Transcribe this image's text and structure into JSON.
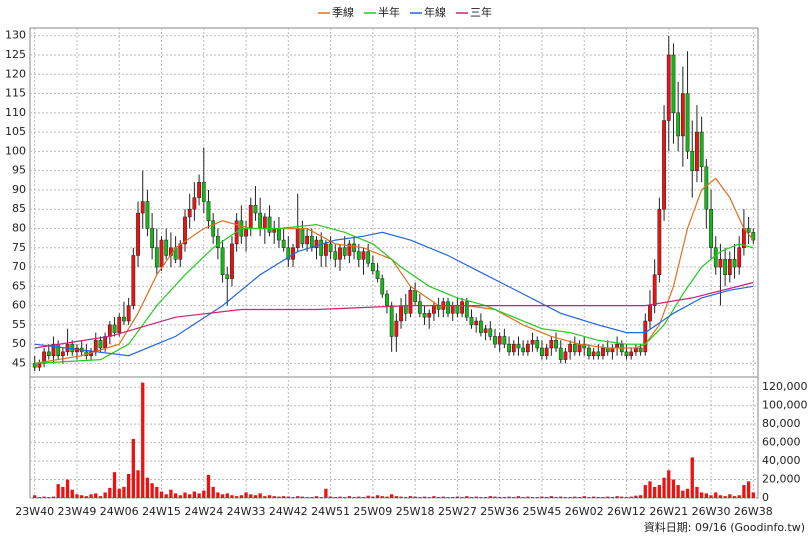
{
  "chart_data": {
    "type": "candlestick",
    "up_color": "#ee1111",
    "down_color": "#11bb11",
    "volume_color": "#ee1111",
    "grid": true,
    "footnote": "資料日期: 09/16  (Goodinfo.tw)",
    "ylim": [
      42,
      132
    ],
    "yticks": [
      45,
      50,
      55,
      60,
      65,
      70,
      75,
      80,
      85,
      90,
      95,
      100,
      105,
      110,
      115,
      120,
      125,
      130
    ],
    "y2lim": [
      0,
      130000
    ],
    "y2ticks": [
      0,
      {
        "value": 20000,
        "label": "20,000"
      },
      {
        "value": 40000,
        "label": "40,000"
      },
      {
        "value": 60000,
        "label": "60,000"
      },
      {
        "value": 80000,
        "label": "80,000"
      },
      {
        "value": 100000,
        "label": "100,000"
      },
      {
        "value": 120000,
        "label": "120,000"
      }
    ],
    "xlim": [
      -1,
      154
    ],
    "xticks": [
      {
        "value": 0,
        "label": "23W40"
      },
      {
        "value": 9,
        "label": "23W49"
      },
      {
        "value": 18,
        "label": "24W06"
      },
      {
        "value": 27,
        "label": "24W15"
      },
      {
        "value": 36,
        "label": "24W24"
      },
      {
        "value": 45,
        "label": "24W33"
      },
      {
        "value": 54,
        "label": "24W42"
      },
      {
        "value": 63,
        "label": "24W51"
      },
      {
        "value": 72,
        "label": "25W09"
      },
      {
        "value": 81,
        "label": "25W18"
      },
      {
        "value": 90,
        "label": "25W27"
      },
      {
        "value": 99,
        "label": "25W36"
      },
      {
        "value": 108,
        "label": "25W45"
      },
      {
        "value": 117,
        "label": "26W02"
      },
      {
        "value": 126,
        "label": "26W12"
      },
      {
        "value": 135,
        "label": "26W21"
      },
      {
        "value": 144,
        "label": "26W30"
      },
      {
        "value": 153,
        "label": "26W38"
      }
    ],
    "ohlc": [
      [
        45,
        47,
        43,
        44
      ],
      [
        44,
        46,
        43,
        45
      ],
      [
        45,
        49,
        44,
        48
      ],
      [
        48,
        50,
        46,
        47
      ],
      [
        47,
        52,
        45,
        50
      ],
      [
        50,
        51,
        46,
        47
      ],
      [
        47,
        49,
        45,
        48
      ],
      [
        48,
        54,
        47,
        50
      ],
      [
        50,
        51,
        47,
        48
      ],
      [
        48,
        50,
        46,
        49
      ],
      [
        49,
        51,
        47,
        48
      ],
      [
        48,
        50,
        46,
        47
      ],
      [
        47,
        49,
        46,
        48
      ],
      [
        48,
        53,
        47,
        51
      ],
      [
        51,
        52,
        48,
        49
      ],
      [
        49,
        53,
        48,
        52
      ],
      [
        52,
        56,
        50,
        55
      ],
      [
        55,
        57,
        52,
        53
      ],
      [
        53,
        58,
        52,
        57
      ],
      [
        57,
        61,
        55,
        56
      ],
      [
        56,
        62,
        55,
        60
      ],
      [
        60,
        75,
        59,
        73
      ],
      [
        73,
        87,
        70,
        84
      ],
      [
        84,
        95,
        80,
        87
      ],
      [
        87,
        90,
        78,
        80
      ],
      [
        80,
        84,
        72,
        75
      ],
      [
        75,
        80,
        68,
        70
      ],
      [
        70,
        78,
        69,
        77
      ],
      [
        77,
        80,
        72,
        73
      ],
      [
        73,
        79,
        70,
        75
      ],
      [
        75,
        78,
        71,
        72
      ],
      [
        72,
        77,
        70,
        76
      ],
      [
        76,
        85,
        74,
        83
      ],
      [
        83,
        89,
        80,
        85
      ],
      [
        85,
        92,
        82,
        88
      ],
      [
        88,
        94,
        86,
        92
      ],
      [
        92,
        101,
        84,
        87
      ],
      [
        87,
        90,
        80,
        82
      ],
      [
        82,
        84,
        76,
        78
      ],
      [
        78,
        80,
        72,
        75
      ],
      [
        75,
        77,
        66,
        68
      ],
      [
        68,
        70,
        60,
        67
      ],
      [
        67,
        78,
        65,
        76
      ],
      [
        76,
        84,
        74,
        82
      ],
      [
        82,
        86,
        76,
        78
      ],
      [
        78,
        82,
        74,
        80
      ],
      [
        80,
        88,
        78,
        86
      ],
      [
        86,
        91,
        82,
        84
      ],
      [
        84,
        88,
        78,
        80
      ],
      [
        80,
        84,
        76,
        83
      ],
      [
        83,
        86,
        78,
        79
      ],
      [
        79,
        82,
        76,
        80
      ],
      [
        80,
        83,
        75,
        77
      ],
      [
        77,
        80,
        74,
        75
      ],
      [
        75,
        78,
        70,
        72
      ],
      [
        72,
        76,
        70,
        75
      ],
      [
        75,
        89,
        74,
        80
      ],
      [
        80,
        82,
        75,
        76
      ],
      [
        76,
        80,
        74,
        78
      ],
      [
        78,
        80,
        74,
        75
      ],
      [
        75,
        78,
        72,
        77
      ],
      [
        77,
        79,
        70,
        73
      ],
      [
        73,
        77,
        70,
        76
      ],
      [
        76,
        78,
        72,
        74
      ],
      [
        74,
        76,
        70,
        72
      ],
      [
        72,
        76,
        69,
        75
      ],
      [
        75,
        78,
        72,
        73
      ],
      [
        73,
        77,
        71,
        76
      ],
      [
        76,
        78,
        72,
        74
      ],
      [
        74,
        76,
        70,
        72
      ],
      [
        72,
        75,
        68,
        74
      ],
      [
        74,
        76,
        70,
        71
      ],
      [
        71,
        73,
        68,
        69
      ],
      [
        69,
        71,
        66,
        67
      ],
      [
        67,
        68,
        62,
        63
      ],
      [
        63,
        64,
        58,
        60
      ],
      [
        60,
        61,
        48,
        52
      ],
      [
        52,
        58,
        48,
        56
      ],
      [
        56,
        62,
        54,
        60
      ],
      [
        60,
        63,
        56,
        58
      ],
      [
        58,
        65,
        57,
        64
      ],
      [
        64,
        66,
        60,
        61
      ],
      [
        61,
        63,
        57,
        58
      ],
      [
        58,
        60,
        55,
        57
      ],
      [
        57,
        59,
        54,
        58
      ],
      [
        58,
        61,
        56,
        60
      ],
      [
        60,
        62,
        57,
        59
      ],
      [
        59,
        62,
        57,
        61
      ],
      [
        61,
        62,
        57,
        58
      ],
      [
        58,
        61,
        56,
        60
      ],
      [
        60,
        62,
        57,
        58
      ],
      [
        58,
        62,
        57,
        61
      ],
      [
        61,
        62,
        56,
        57
      ],
      [
        57,
        59,
        54,
        55
      ],
      [
        55,
        57,
        53,
        56
      ],
      [
        56,
        58,
        52,
        53
      ],
      [
        53,
        55,
        51,
        54
      ],
      [
        54,
        56,
        51,
        52
      ],
      [
        52,
        54,
        49,
        50
      ],
      [
        50,
        53,
        48,
        52
      ],
      [
        52,
        54,
        49,
        50
      ],
      [
        50,
        52,
        47,
        48
      ],
      [
        48,
        51,
        47,
        50
      ],
      [
        50,
        52,
        47,
        49
      ],
      [
        49,
        51,
        47,
        48
      ],
      [
        48,
        51,
        47,
        50
      ],
      [
        50,
        53,
        48,
        51
      ],
      [
        51,
        52,
        48,
        49
      ],
      [
        49,
        51,
        46,
        47
      ],
      [
        47,
        50,
        46,
        49
      ],
      [
        49,
        52,
        47,
        51
      ],
      [
        51,
        53,
        48,
        49
      ],
      [
        49,
        51,
        45,
        46
      ],
      [
        46,
        49,
        45,
        48
      ],
      [
        48,
        51,
        46,
        50
      ],
      [
        50,
        52,
        47,
        48
      ],
      [
        48,
        51,
        47,
        50
      ],
      [
        50,
        52,
        47,
        49
      ],
      [
        49,
        50,
        46,
        47
      ],
      [
        47,
        49,
        46,
        48
      ],
      [
        48,
        50,
        46,
        47
      ],
      [
        47,
        50,
        46,
        49
      ],
      [
        49,
        51,
        47,
        48
      ],
      [
        48,
        50,
        46,
        49
      ],
      [
        49,
        52,
        47,
        50
      ],
      [
        50,
        51,
        47,
        48
      ],
      [
        48,
        50,
        46,
        47
      ],
      [
        47,
        49,
        46,
        48
      ],
      [
        48,
        50,
        47,
        49
      ],
      [
        49,
        50,
        47,
        48
      ],
      [
        48,
        58,
        47,
        56
      ],
      [
        56,
        64,
        54,
        60
      ],
      [
        60,
        72,
        58,
        68
      ],
      [
        68,
        88,
        66,
        85
      ],
      [
        85,
        112,
        82,
        108
      ],
      [
        108,
        130,
        100,
        125
      ],
      [
        125,
        128,
        102,
        110
      ],
      [
        110,
        118,
        100,
        104
      ],
      [
        104,
        122,
        96,
        115
      ],
      [
        115,
        126,
        98,
        100
      ],
      [
        100,
        108,
        88,
        95
      ],
      [
        95,
        112,
        92,
        105
      ],
      [
        105,
        109,
        92,
        96
      ],
      [
        96,
        98,
        80,
        85
      ],
      [
        85,
        90,
        72,
        75
      ],
      [
        75,
        78,
        68,
        70
      ],
      [
        70,
        76,
        60,
        72
      ],
      [
        72,
        75,
        65,
        68
      ],
      [
        68,
        74,
        66,
        72
      ],
      [
        72,
        76,
        67,
        70
      ],
      [
        70,
        78,
        68,
        75
      ],
      [
        75,
        85,
        73,
        80
      ],
      [
        80,
        83,
        76,
        79
      ],
      [
        79,
        80,
        76,
        77
      ]
    ],
    "volume": [
      3000,
      1000,
      1500,
      1000,
      1500,
      15000,
      12000,
      20000,
      9000,
      4000,
      3000,
      2000,
      4000,
      5000,
      2000,
      6000,
      11000,
      28000,
      10000,
      12000,
      26000,
      64000,
      30000,
      125000,
      22000,
      16000,
      12000,
      7000,
      4000,
      9000,
      5000,
      3000,
      6000,
      4000,
      7000,
      5000,
      8000,
      25000,
      12000,
      6000,
      4000,
      5000,
      3000,
      2000,
      3000,
      6000,
      4000,
      3000,
      5000,
      2000,
      3000,
      2000,
      1500,
      2000,
      1500,
      1000,
      2000,
      1500,
      1000,
      1000,
      2000,
      1000,
      10000,
      1500,
      1000,
      1500,
      1000,
      2000,
      1000,
      1500,
      1000,
      2500,
      1500,
      3000,
      2000,
      1500,
      4000,
      2000,
      1500,
      1000,
      2000,
      1500,
      1000,
      1500,
      1000,
      2000,
      1000,
      1500,
      1000,
      1000,
      1500,
      1000,
      2000,
      1000,
      1500,
      1000,
      1000,
      2000,
      1500,
      1000,
      1000,
      1500,
      1000,
      2000,
      1000,
      1500,
      1000,
      1000,
      1500,
      1000,
      2000,
      1000,
      1500,
      1000,
      1000,
      1500,
      1000,
      2000,
      1000,
      1500,
      1000,
      1000,
      1500,
      1000,
      2000,
      1500,
      1000,
      1500,
      2500,
      3000,
      14000,
      18000,
      12000,
      14000,
      22000,
      30000,
      20000,
      14000,
      8000,
      10000,
      44000,
      12000,
      6000,
      5000,
      3000,
      6000,
      3000,
      2000,
      4000,
      2000,
      3000,
      14000,
      18000,
      6000
    ],
    "series": [
      {
        "name": "季線",
        "color": "#e07020",
        "x": [
          0,
          10,
          18,
          22,
          26,
          30,
          36,
          40,
          46,
          52,
          58,
          64,
          70,
          76,
          80,
          86,
          92,
          98,
          104,
          110,
          116,
          122,
          128,
          130,
          133,
          136,
          139,
          142,
          145,
          148,
          151,
          153
        ],
        "values": [
          45,
          47,
          50,
          58,
          68,
          75,
          80,
          82,
          80,
          80,
          80,
          76,
          75,
          72,
          65,
          60,
          60,
          59,
          55,
          52,
          50,
          49,
          49,
          50,
          55,
          65,
          80,
          90,
          93,
          88,
          80,
          77
        ]
      },
      {
        "name": "半年",
        "color": "#22cc22",
        "x": [
          0,
          14,
          20,
          26,
          32,
          38,
          44,
          52,
          60,
          66,
          72,
          78,
          84,
          90,
          96,
          102,
          108,
          114,
          120,
          126,
          130,
          134,
          138,
          142,
          146,
          150,
          153
        ],
        "values": [
          45,
          46,
          50,
          60,
          68,
          75,
          80,
          80,
          81,
          79,
          76,
          70,
          65,
          62,
          60,
          57,
          54,
          53,
          51,
          50,
          50,
          55,
          63,
          70,
          74,
          76,
          75
        ]
      },
      {
        "name": "年線",
        "color": "#2266dd",
        "x": [
          0,
          20,
          30,
          40,
          48,
          56,
          64,
          70,
          74,
          80,
          88,
          96,
          104,
          112,
          120,
          126,
          130,
          136,
          142,
          148,
          153
        ],
        "values": [
          50,
          47,
          52,
          60,
          68,
          74,
          77,
          78,
          79,
          77,
          73,
          68,
          63,
          58,
          55,
          53,
          53,
          58,
          62,
          64,
          65
        ]
      },
      {
        "name": "三年",
        "color": "#cc2277",
        "x": [
          0,
          16,
          30,
          44,
          60,
          80,
          100,
          120,
          130,
          140,
          153
        ],
        "values": [
          49,
          52,
          57,
          59,
          59,
          60,
          60,
          60,
          60,
          62,
          66
        ]
      }
    ]
  }
}
